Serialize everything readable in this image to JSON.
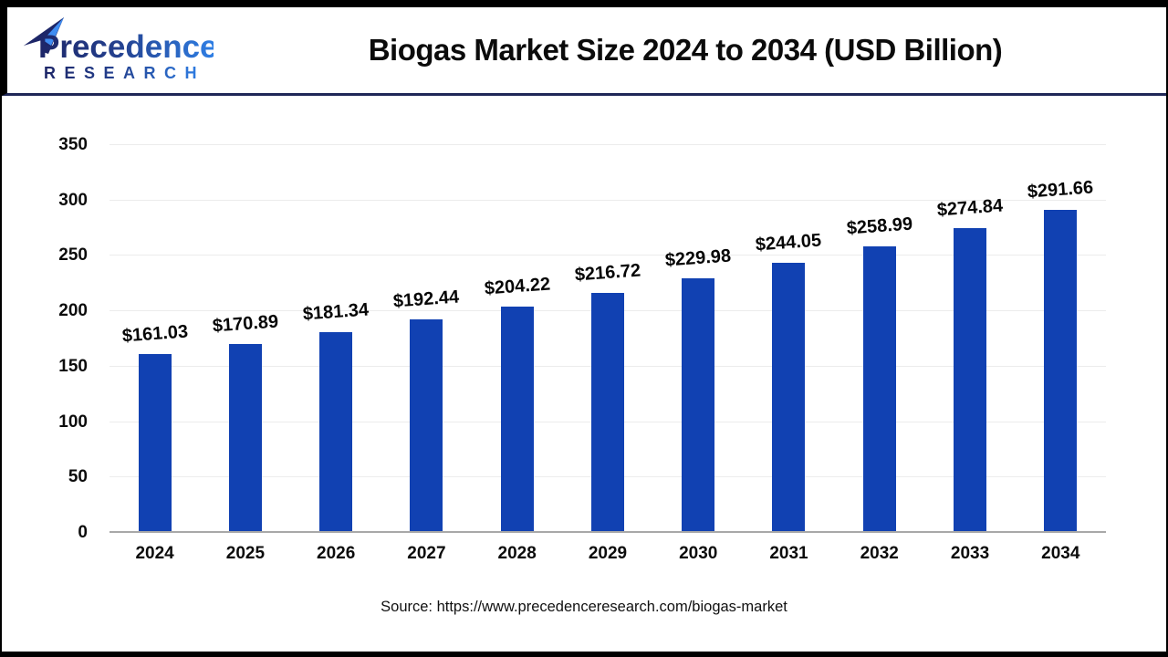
{
  "header": {
    "logo": {
      "line1": "Precedence",
      "line2": "RESEARCH"
    },
    "title": "Biogas Market Size 2024 to 2034 (USD Billion)"
  },
  "chart_data": {
    "type": "bar",
    "title": "Biogas Market Size 2024 to 2034 (USD Billion)",
    "categories": [
      "2024",
      "2025",
      "2026",
      "2027",
      "2028",
      "2029",
      "2030",
      "2031",
      "2032",
      "2033",
      "2034"
    ],
    "values": [
      161.03,
      170.89,
      181.34,
      192.44,
      204.22,
      216.72,
      229.98,
      244.05,
      258.99,
      274.84,
      291.66
    ],
    "labels": [
      "$161.03",
      "$170.89",
      "$181.34",
      "$192.44",
      "$204.22",
      "$216.72",
      "$229.98",
      "$244.05",
      "$258.99",
      "$274.84",
      "$291.66"
    ],
    "xlabel": "",
    "ylabel": "",
    "ylim": [
      0,
      350
    ],
    "yticks": [
      0,
      50,
      100,
      150,
      200,
      250,
      300,
      350
    ],
    "grid": true,
    "legend": "none",
    "bar_color": "#1141B2"
  },
  "footer": {
    "source_text": "Source: https://www.precedenceresearch.com/biogas-market"
  },
  "colors": {
    "bar": "#1141B2",
    "header_separator": "#1f2757",
    "frame": "#000000",
    "gridline": "#ececec",
    "axis_line": "#a8a8a8",
    "logo_navy": "#1d2668",
    "logo_blue": "#2f81e8"
  }
}
